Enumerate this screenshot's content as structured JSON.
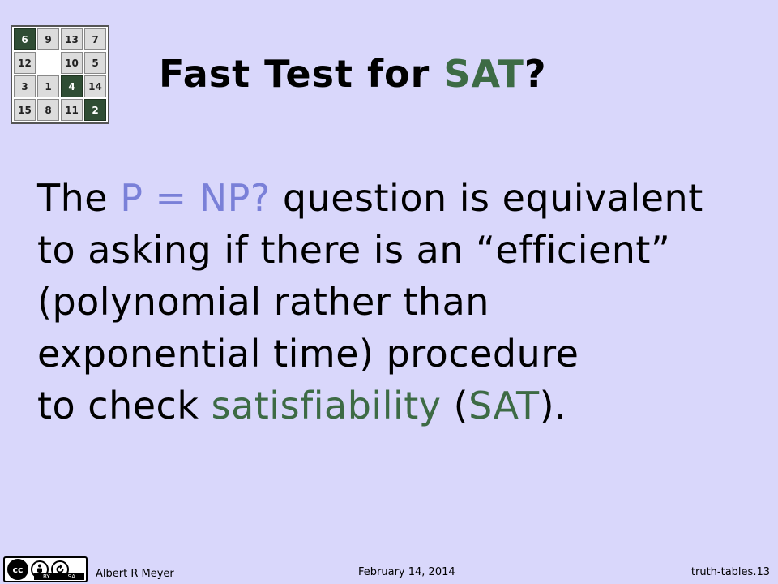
{
  "puzzle": {
    "tiles": [
      {
        "label": "6",
        "dark": true
      },
      {
        "label": "9",
        "dark": false
      },
      {
        "label": "13",
        "dark": false
      },
      {
        "label": "7",
        "dark": false
      },
      {
        "label": "12",
        "dark": false
      },
      {
        "label": "",
        "dark": false,
        "empty": true
      },
      {
        "label": "10",
        "dark": false
      },
      {
        "label": "5",
        "dark": false
      },
      {
        "label": "3",
        "dark": false
      },
      {
        "label": "1",
        "dark": false
      },
      {
        "label": "4",
        "dark": true
      },
      {
        "label": "14",
        "dark": false
      },
      {
        "label": "15",
        "dark": false
      },
      {
        "label": "8",
        "dark": false
      },
      {
        "label": "11",
        "dark": false
      },
      {
        "label": "2",
        "dark": true
      }
    ]
  },
  "title": {
    "prefix": "Fast Test for ",
    "highlight": "SAT",
    "suffix": "?"
  },
  "body": {
    "l1_a": "The ",
    "l1_b": "P = NP?",
    "l1_c": " question is equivalent",
    "l2": "to asking if there is an “efficient”",
    "l3": "(polynomial rather than",
    "l4": "exponential time) procedure",
    "l5_a": "to check ",
    "l5_b": "satisfiability",
    "l5_c": " (",
    "l5_d": "SAT",
    "l5_e": ")."
  },
  "footer": {
    "license_main": "cc",
    "license_by": "BY",
    "license_sa": "SA",
    "author": "Albert R Meyer",
    "date": "February 14, 2014",
    "slide_id": "truth-tables.13"
  },
  "colors": {
    "background": "#d9d7fb",
    "green": "#3d6b45",
    "blue": "#7a80d8"
  }
}
